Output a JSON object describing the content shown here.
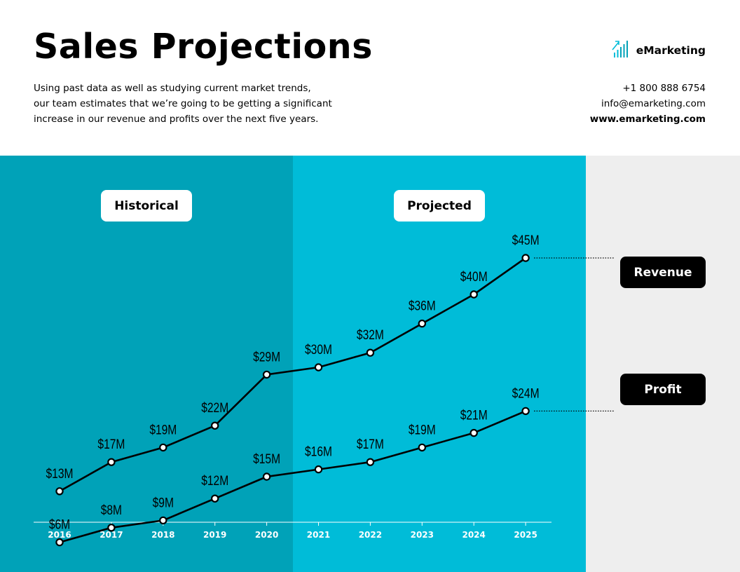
{
  "header": {
    "title": "Sales Projections",
    "description_lines": [
      "Using past data as well as studying current market trends,",
      "our team estimates that we’re going to be getting a significant",
      "increase in our revenue and profits over the next five years."
    ]
  },
  "brand": {
    "name": "eMarketing",
    "icon": "bar-chart-arrow-icon",
    "phone": "+1 800 888 6754",
    "email": "info@emarketing.com",
    "website": "www.emarketing.com"
  },
  "sections": {
    "historical": "Historical",
    "projected": "Projected"
  },
  "colors": {
    "historical_bg": "#00a2b8",
    "projected_bg": "#00bcd8",
    "side_bg": "#eeeeee",
    "line": "#000000"
  },
  "chart_data": {
    "type": "line",
    "title": "",
    "xlabel": "",
    "ylabel": "",
    "x": [
      "2016",
      "2017",
      "2018",
      "2019",
      "2020",
      "2021",
      "2022",
      "2023",
      "2024",
      "2025"
    ],
    "ylim": [
      0,
      50
    ],
    "grid": false,
    "legend_position": "right",
    "series": [
      {
        "name": "Revenue",
        "values": [
          13,
          17,
          19,
          22,
          29,
          30,
          32,
          36,
          40,
          45
        ],
        "labels": [
          "$13M",
          "$17M",
          "$19M",
          "$22M",
          "$29M",
          "$30M",
          "$32M",
          "$36M",
          "$40M",
          "$45M"
        ]
      },
      {
        "name": "Profit",
        "values": [
          6,
          8,
          9,
          12,
          15,
          16,
          17,
          19,
          21,
          24
        ],
        "labels": [
          "$6M",
          "$8M",
          "$9M",
          "$12M",
          "$15M",
          "$16M",
          "$17M",
          "$19M",
          "$21M",
          "$24M"
        ]
      }
    ]
  }
}
